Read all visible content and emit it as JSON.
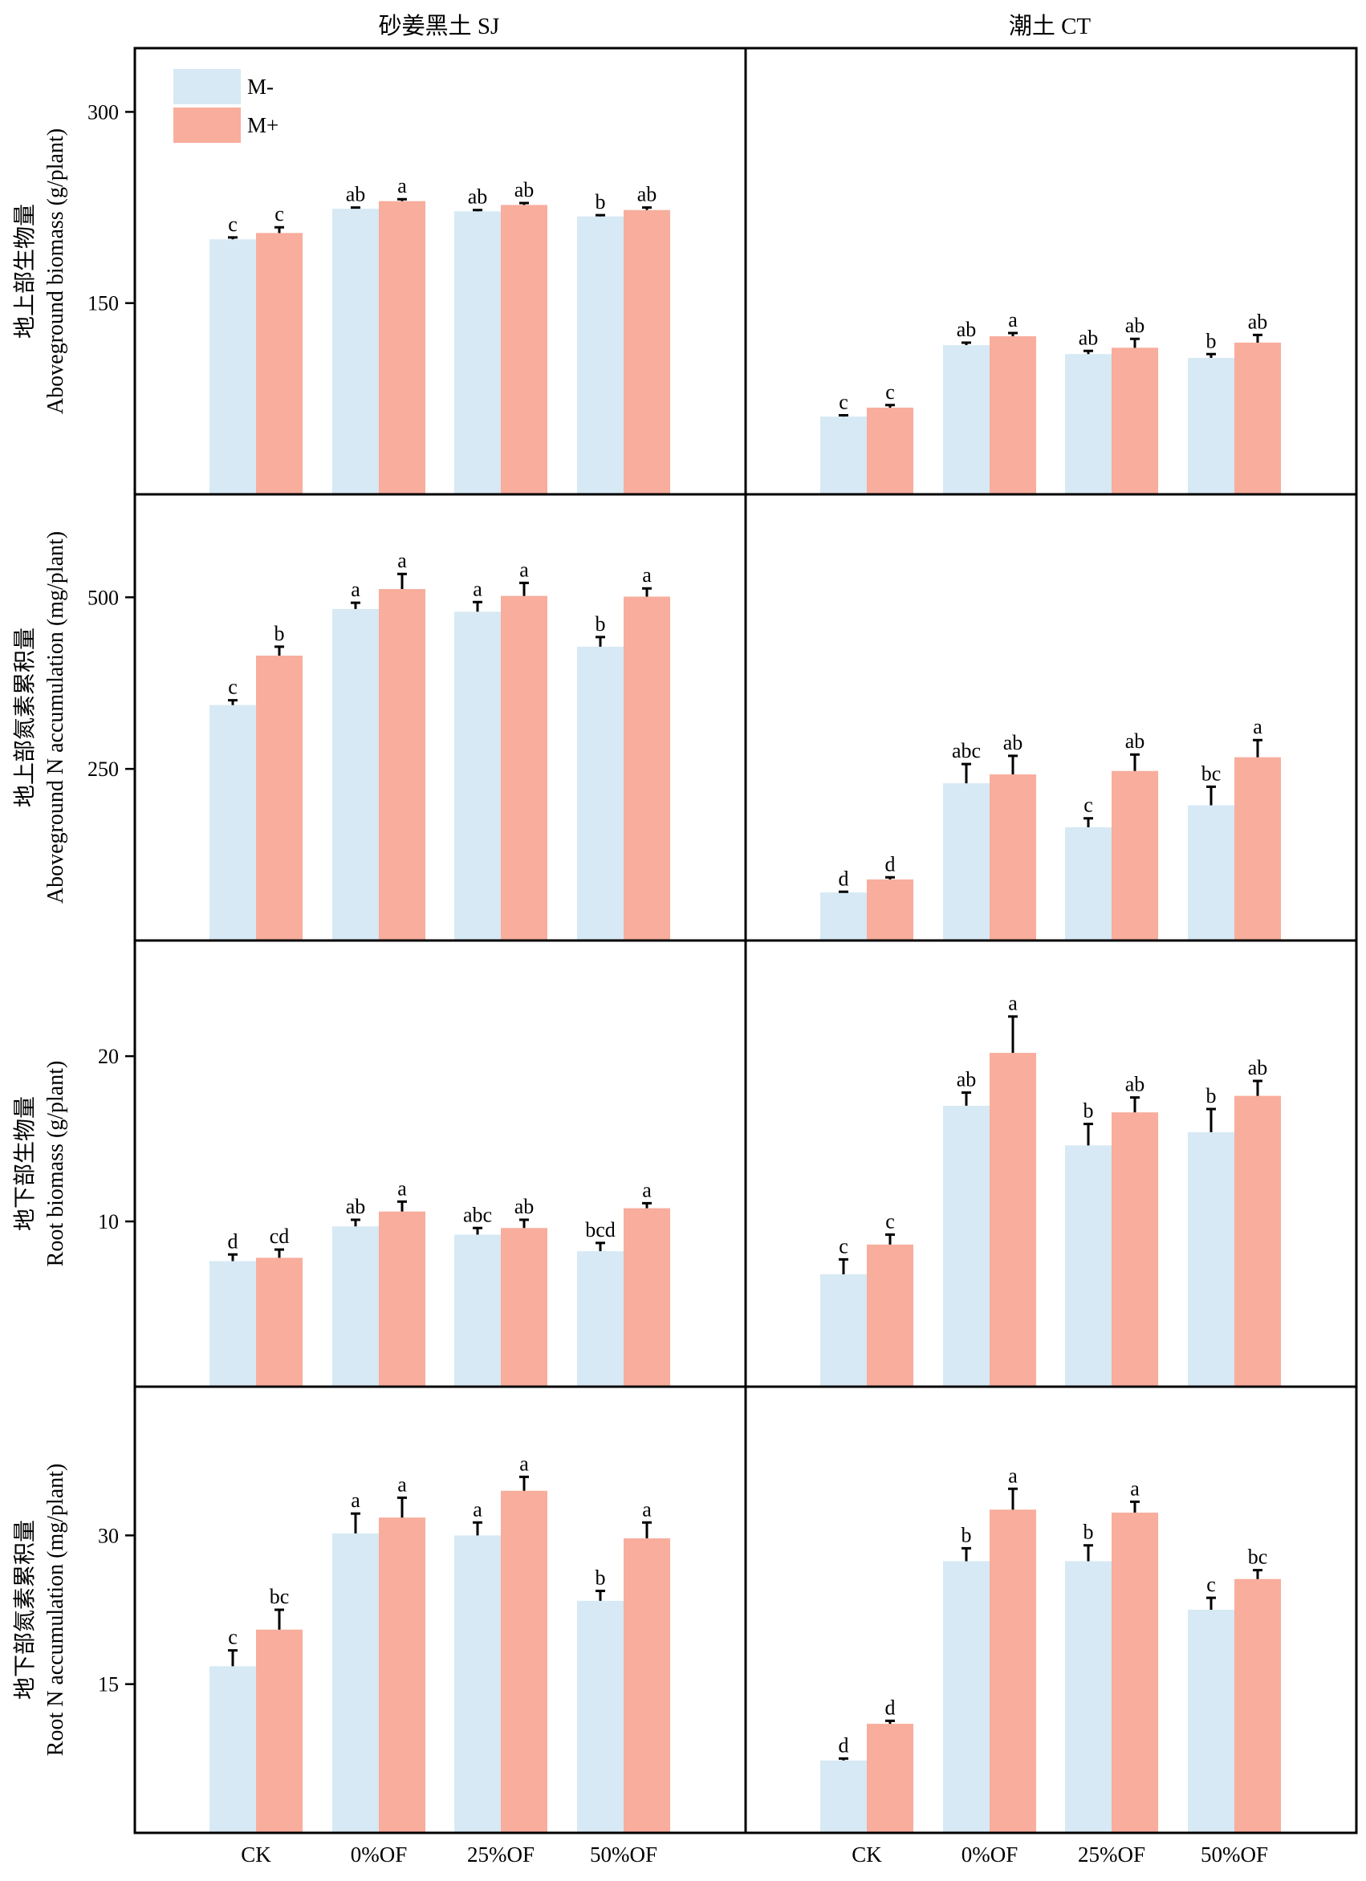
{
  "chart_data": {
    "type": "bar",
    "columns": [
      "砂姜黑土 SJ",
      "潮土 CT"
    ],
    "categories": [
      "CK",
      "0%OF",
      "25%OF",
      "50%OF"
    ],
    "legend": {
      "placement": "top-left",
      "entries": [
        {
          "name": "M-",
          "color": "#d6e9f4"
        },
        {
          "name": "M+",
          "color": "#f8ad9d"
        }
      ]
    },
    "panels": [
      {
        "ylabel_cn": "地上部生物量",
        "ylabel_en": "Aboveground biomass (g/plant)",
        "ylim": [
          0,
          350
        ],
        "yticks": [
          150,
          300
        ],
        "plots": [
          {
            "series": [
              {
                "name": "M-",
                "values": [
                  200,
                  224,
                  222,
                  218
                ],
                "errors": [
                  1.5,
                  1,
                  1,
                  1
                ],
                "letters": [
                  "c",
                  "ab",
                  "ab",
                  "b"
                ]
              },
              {
                "name": "M+",
                "values": [
                  205,
                  230,
                  227,
                  223
                ],
                "errors": [
                  4.5,
                  1.5,
                  1.5,
                  2
                ],
                "letters": [
                  "c",
                  "a",
                  "ab",
                  "ab"
                ]
              }
            ]
          },
          {
            "series": [
              {
                "name": "M-",
                "values": [
                  61,
                  117,
                  110,
                  107
                ],
                "errors": [
                  1,
                  2,
                  2.5,
                  3
                ],
                "letters": [
                  "c",
                  "ab",
                  "ab",
                  "b"
                ]
              },
              {
                "name": "M+",
                "values": [
                  68,
                  124,
                  115,
                  119
                ],
                "errors": [
                  2,
                  2.5,
                  7,
                  6
                ],
                "letters": [
                  "c",
                  "a",
                  "ab",
                  "ab"
                ]
              }
            ]
          }
        ]
      },
      {
        "ylabel_cn": "地上部氮素累积量",
        "ylabel_en": "Aboveground N accumulation (mg/plant)",
        "ylim": [
          0,
          650
        ],
        "yticks": [
          250,
          500
        ],
        "plots": [
          {
            "series": [
              {
                "name": "M-",
                "values": [
                  343,
                  483,
                  479,
                  428
                ],
                "errors": [
                  7,
                  9,
                  14,
                  14
                ],
                "letters": [
                  "c",
                  "a",
                  "a",
                  "b"
                ]
              },
              {
                "name": "M+",
                "values": [
                  415,
                  512,
                  502,
                  501
                ],
                "errors": [
                  13,
                  22,
                  19,
                  12
                ],
                "letters": [
                  "b",
                  "a",
                  "a",
                  "a"
                ]
              }
            ]
          },
          {
            "series": [
              {
                "name": "M-",
                "values": [
                  70,
                  229,
                  165,
                  197
                ],
                "errors": [
                  1,
                  28,
                  13,
                  27
                ],
                "letters": [
                  "d",
                  "abc",
                  "c",
                  "bc"
                ]
              },
              {
                "name": "M+",
                "values": [
                  89,
                  242,
                  247,
                  267
                ],
                "errors": [
                  3,
                  27,
                  24,
                  25
                ],
                "letters": [
                  "d",
                  "ab",
                  "ab",
                  "a"
                ]
              }
            ]
          }
        ]
      },
      {
        "ylabel_cn": "地下部生物量",
        "ylabel_en": "Root biomass (g/plant)",
        "ylim": [
          0,
          27
        ],
        "yticks": [
          10,
          20
        ],
        "plots": [
          {
            "series": [
              {
                "name": "M-",
                "values": [
                  7.6,
                  9.7,
                  9.2,
                  8.2
                ],
                "errors": [
                  0.4,
                  0.4,
                  0.4,
                  0.5
                ],
                "letters": [
                  "d",
                  "ab",
                  "abc",
                  "bcd"
                ]
              },
              {
                "name": "M+",
                "values": [
                  7.8,
                  10.6,
                  9.6,
                  10.8
                ],
                "errors": [
                  0.5,
                  0.6,
                  0.5,
                  0.3
                ],
                "letters": [
                  "cd",
                  "a",
                  "ab",
                  "a"
                ]
              }
            ]
          },
          {
            "series": [
              {
                "name": "M-",
                "values": [
                  6.8,
                  17.0,
                  14.6,
                  15.4
                ],
                "errors": [
                  0.9,
                  0.8,
                  1.3,
                  1.4
                ],
                "letters": [
                  "c",
                  "ab",
                  "b",
                  "b"
                ]
              },
              {
                "name": "M+",
                "values": [
                  8.6,
                  20.2,
                  16.6,
                  17.6
                ],
                "errors": [
                  0.6,
                  2.2,
                  0.9,
                  0.9
                ],
                "letters": [
                  "c",
                  "a",
                  "ab",
                  "ab"
                ]
              }
            ]
          }
        ]
      },
      {
        "ylabel_cn": "地下部氮素累积量",
        "ylabel_en": "Root N accumulation (mg/plant)",
        "ylim": [
          0,
          45
        ],
        "yticks": [
          15,
          30
        ],
        "plots": [
          {
            "series": [
              {
                "name": "M-",
                "values": [
                  16.8,
                  30.2,
                  30.0,
                  23.4
                ],
                "errors": [
                  1.6,
                  2.0,
                  1.3,
                  1.0
                ],
                "letters": [
                  "c",
                  "a",
                  "a",
                  "b"
                ]
              },
              {
                "name": "M+",
                "values": [
                  20.5,
                  31.8,
                  34.5,
                  29.7
                ],
                "errors": [
                  2.0,
                  2.0,
                  1.4,
                  1.6
                ],
                "letters": [
                  "bc",
                  "a",
                  "a",
                  "a"
                ]
              }
            ]
          },
          {
            "series": [
              {
                "name": "M-",
                "values": [
                  7.3,
                  27.4,
                  27.4,
                  22.5
                ],
                "errors": [
                  0.2,
                  1.3,
                  1.6,
                  1.2
                ],
                "letters": [
                  "d",
                  "b",
                  "b",
                  "c"
                ]
              },
              {
                "name": "M+",
                "values": [
                  11.0,
                  32.6,
                  32.3,
                  25.6
                ],
                "errors": [
                  0.3,
                  2.1,
                  1.1,
                  0.9
                ],
                "letters": [
                  "d",
                  "a",
                  "a",
                  "bc"
                ]
              }
            ]
          }
        ]
      }
    ]
  }
}
